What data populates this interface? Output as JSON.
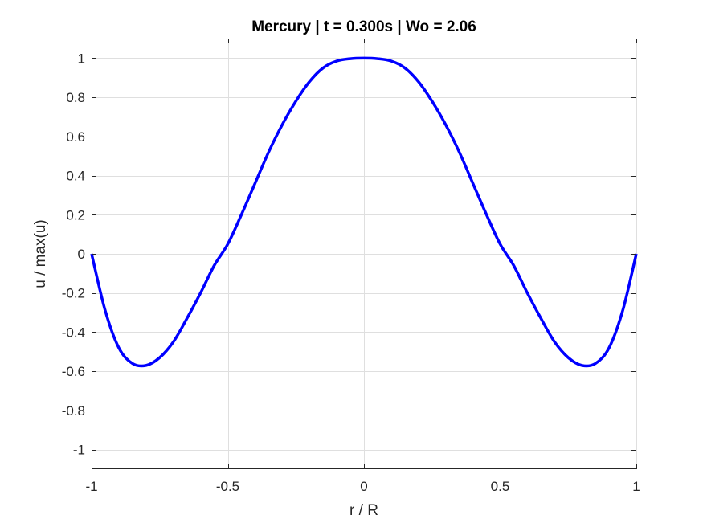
{
  "chart_data": {
    "type": "line",
    "title": "Mercury | t = 0.300s | Wo = 2.06",
    "xlabel": "r / R",
    "ylabel": "u / max(u)",
    "xlim": [
      -1,
      1
    ],
    "ylim": [
      -1.1,
      1.1
    ],
    "grid": true,
    "legend": "none",
    "xticks": [
      -1,
      -0.5,
      0,
      0.5,
      1
    ],
    "xtick_labels": [
      "-1",
      "-0.5",
      "0",
      "0.5",
      "1"
    ],
    "yticks": [
      -1,
      -0.8,
      -0.6,
      -0.4,
      -0.2,
      0,
      0.2,
      0.4,
      0.6,
      0.8,
      1
    ],
    "ytick_labels": [
      "-1",
      "-0.8",
      "-0.6",
      "-0.4",
      "-0.2",
      "0",
      "0.2",
      "0.4",
      "0.6",
      "0.8",
      "1"
    ],
    "series": [
      {
        "color": "#0000ff",
        "x": [
          -1.0,
          -0.95,
          -0.9,
          -0.85,
          -0.8,
          -0.75,
          -0.7,
          -0.65,
          -0.6,
          -0.55,
          -0.5,
          -0.45,
          -0.4,
          -0.35,
          -0.3,
          -0.25,
          -0.2,
          -0.15,
          -0.1,
          -0.05,
          0.0,
          0.05,
          0.1,
          0.15,
          0.2,
          0.25,
          0.3,
          0.35,
          0.4,
          0.45,
          0.5,
          0.55,
          0.6,
          0.65,
          0.7,
          0.75,
          0.8,
          0.85,
          0.9,
          0.95,
          1.0
        ],
        "y": [
          0.0,
          -0.29,
          -0.48,
          -0.56,
          -0.57,
          -0.53,
          -0.45,
          -0.33,
          -0.2,
          -0.06,
          0.05,
          0.2,
          0.36,
          0.52,
          0.66,
          0.78,
          0.88,
          0.95,
          0.985,
          0.997,
          1.0,
          0.997,
          0.985,
          0.95,
          0.88,
          0.78,
          0.66,
          0.52,
          0.36,
          0.2,
          0.05,
          -0.06,
          -0.2,
          -0.33,
          -0.45,
          -0.53,
          -0.57,
          -0.56,
          -0.48,
          -0.29,
          0.0
        ]
      }
    ]
  }
}
